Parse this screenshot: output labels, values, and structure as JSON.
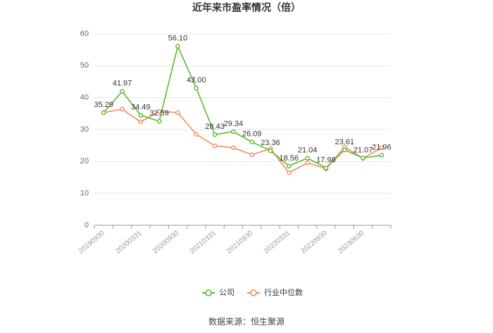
{
  "chart_data": {
    "type": "line",
    "title": "近年来市盈率情况（倍）",
    "categories": [
      "20190930",
      null,
      "20200331",
      null,
      "20200930",
      null,
      "20210331",
      null,
      "20210930",
      null,
      "20220331",
      null,
      "20220930",
      null,
      "20230630",
      null
    ],
    "series": [
      {
        "name": "公司",
        "color": "#5cb82f",
        "values": [
          35.29,
          41.97,
          34.49,
          32.59,
          56.1,
          43.0,
          28.43,
          29.34,
          26.09,
          23.36,
          18.56,
          21.04,
          17.98,
          23.61,
          21.07,
          21.96
        ],
        "value_labels": [
          "35.29",
          "41.97",
          "34.49",
          "32.59",
          "56.10",
          "43.00",
          "28.43",
          "29.34",
          "26.09",
          "23.36",
          "18.56",
          "21.04",
          "17.98",
          "23.61",
          "21.07",
          "21.96"
        ]
      },
      {
        "name": "行业中位数",
        "color": "#f28c5e",
        "values": [
          35.3,
          36.4,
          32.4,
          35.7,
          35.3,
          28.5,
          24.9,
          24.3,
          22.1,
          24.0,
          16.5,
          19.6,
          17.7,
          24.5,
          21.0,
          24.3
        ]
      }
    ],
    "ylim": [
      0,
      60
    ],
    "yticks": [
      0,
      10,
      20,
      30,
      40,
      50,
      60
    ],
    "grid": true,
    "source": "数据来源：恒生聚源"
  }
}
